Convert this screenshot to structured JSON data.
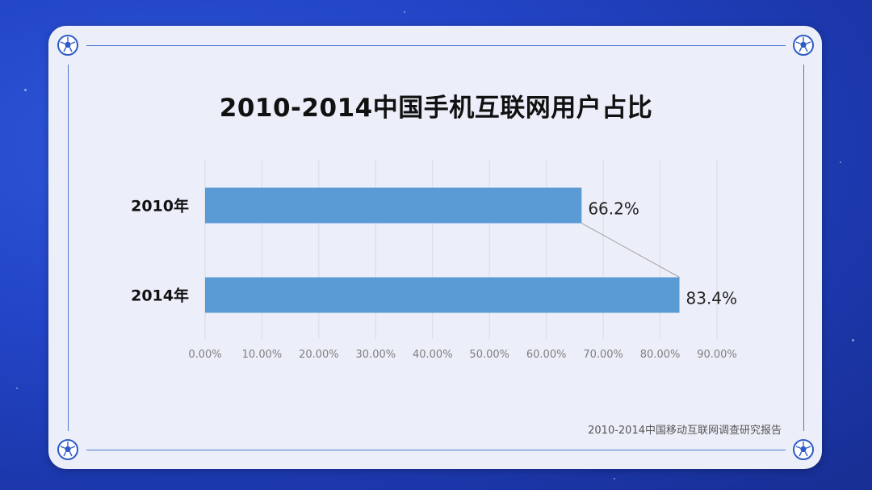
{
  "chart_data": {
    "type": "bar",
    "orientation": "horizontal",
    "title": "2010-2014中国手机互联网用户占比",
    "categories": [
      "2010年",
      "2014年"
    ],
    "values": [
      66.2,
      83.4
    ],
    "data_labels": [
      "66.2%",
      "83.4%"
    ],
    "xlim": [
      0,
      90
    ],
    "x_ticks": [
      0,
      10,
      20,
      30,
      40,
      50,
      60,
      70,
      80,
      90
    ],
    "x_tick_labels": [
      "0.00%",
      "10.00%",
      "20.00%",
      "30.00%",
      "40.00%",
      "50.00%",
      "60.00%",
      "70.00%",
      "80.00%",
      "90.00%"
    ],
    "grid": "vertical",
    "series_lines": true,
    "bar_color": "#5b9bd5"
  },
  "source_note": "2010-2014中国移动互联网调查研究报告"
}
